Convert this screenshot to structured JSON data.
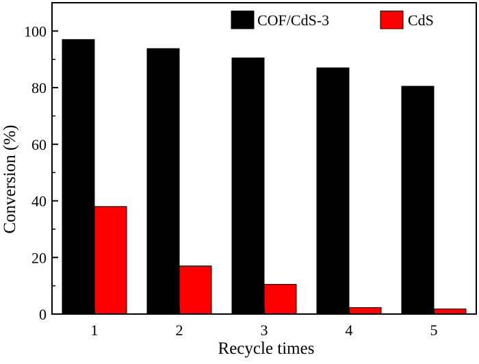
{
  "chart_data": {
    "type": "bar",
    "categories": [
      "1",
      "2",
      "3",
      "4",
      "5"
    ],
    "series": [
      {
        "name": "COF/CdS-3",
        "values": [
          97.0,
          93.8,
          90.5,
          87.0,
          80.5
        ],
        "color": "#000000"
      },
      {
        "name": "CdS",
        "values": [
          38.0,
          17.0,
          10.5,
          2.3,
          1.8
        ],
        "color": "#ff0000"
      }
    ],
    "title": "",
    "xlabel": "Recycle times",
    "ylabel": "Conversion (%)",
    "ylim": [
      0,
      110
    ],
    "yticks": [
      "0",
      "20",
      "40",
      "60",
      "80",
      "100"
    ],
    "grid": false,
    "legend_position": "top-right"
  }
}
